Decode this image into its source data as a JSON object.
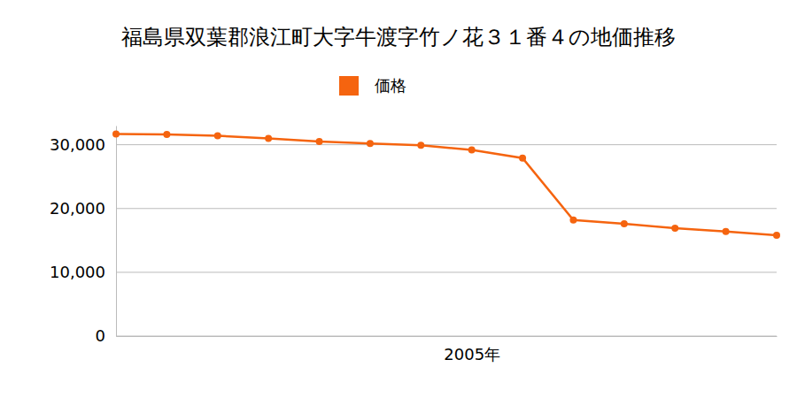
{
  "chart_data": {
    "type": "line",
    "title": "福島県双葉郡浪江町大字牛渡字竹ノ花３１番４の地価推移",
    "categories": [
      null,
      null,
      null,
      null,
      null,
      null,
      null,
      "2005年",
      null,
      null,
      null,
      null,
      null,
      null
    ],
    "series": [
      {
        "name": "価格",
        "color": "#f5640f",
        "values": [
          31700,
          31600,
          31400,
          31000,
          30500,
          30200,
          29900,
          29200,
          27900,
          18200,
          17600,
          16900,
          16400,
          15800
        ]
      }
    ],
    "ylim": [
      0,
      33000
    ],
    "yticks": [
      0,
      {
        "value": 10000,
        "label": "10,000"
      },
      {
        "value": 20000,
        "label": "20,000"
      },
      {
        "value": 30000,
        "label": "30,000"
      }
    ],
    "grid": true,
    "legend": "top",
    "marker": "circle"
  }
}
